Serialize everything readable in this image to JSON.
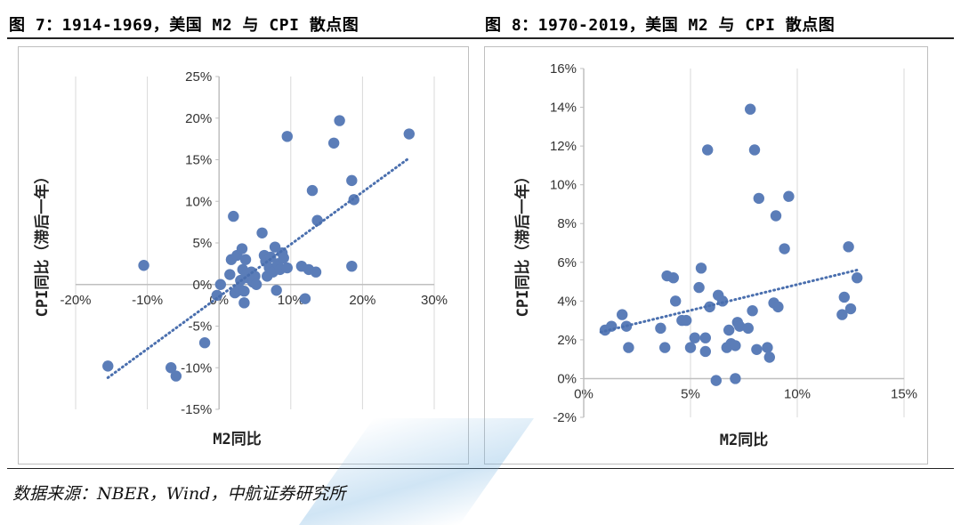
{
  "titles": {
    "left": "图 7：1914-1969，美国 M2 与 CPI 散点图",
    "right": "图 8：1970-2019，美国 M2 与 CPI 散点图"
  },
  "source": "数据来源：NBER，Wind，中航证券研究所",
  "colors": {
    "point": "#5b7db8",
    "trend": "#4a6fae",
    "grid": "#d9d9d9",
    "axis": "#bfbfbf"
  },
  "chart_data": [
    {
      "type": "scatter",
      "title": "",
      "xlabel": "M2同比",
      "ylabel": "CPI同比（滞后一年）",
      "xlim": [
        -0.2,
        0.3
      ],
      "ylim": [
        -0.15,
        0.25
      ],
      "x_ticks": [
        -0.2,
        -0.1,
        0,
        0.1,
        0.2,
        0.3
      ],
      "x_tick_labels": [
        "-20%",
        "-10%",
        "0%",
        "10%",
        "20%",
        "30%"
      ],
      "y_ticks": [
        -0.15,
        -0.1,
        -0.05,
        0,
        0.05,
        0.1,
        0.15,
        0.2,
        0.25
      ],
      "y_tick_labels": [
        "-15%",
        "-10%",
        "-5%",
        "0%",
        "5%",
        "10%",
        "15%",
        "20%",
        "25%"
      ],
      "grid": "vertical-only",
      "trendline": {
        "style": "dotted",
        "x": [
          -0.155,
          0.265
        ],
        "y": [
          -0.112,
          0.152
        ]
      },
      "points": [
        [
          -0.155,
          -0.098
        ],
        [
          -0.105,
          0.023
        ],
        [
          -0.067,
          -0.1
        ],
        [
          -0.06,
          -0.11
        ],
        [
          -0.02,
          -0.07
        ],
        [
          -0.003,
          -0.013
        ],
        [
          0.002,
          0.0
        ],
        [
          0.015,
          0.012
        ],
        [
          0.017,
          0.03
        ],
        [
          0.02,
          0.082
        ],
        [
          0.022,
          -0.01
        ],
        [
          0.025,
          0.035
        ],
        [
          0.025,
          -0.008
        ],
        [
          0.028,
          -0.005
        ],
        [
          0.03,
          0.005
        ],
        [
          0.032,
          0.043
        ],
        [
          0.033,
          0.018
        ],
        [
          0.035,
          -0.022
        ],
        [
          0.035,
          -0.008
        ],
        [
          0.037,
          0.03
        ],
        [
          0.038,
          0.012
        ],
        [
          0.04,
          0.008
        ],
        [
          0.045,
          0.015
        ],
        [
          0.047,
          0.003
        ],
        [
          0.05,
          0.01
        ],
        [
          0.052,
          0.0
        ],
        [
          0.06,
          0.062
        ],
        [
          0.063,
          0.035
        ],
        [
          0.065,
          0.028
        ],
        [
          0.067,
          0.01
        ],
        [
          0.07,
          0.02
        ],
        [
          0.072,
          0.033
        ],
        [
          0.075,
          0.015
        ],
        [
          0.078,
          0.045
        ],
        [
          0.08,
          -0.007
        ],
        [
          0.082,
          0.025
        ],
        [
          0.085,
          0.018
        ],
        [
          0.088,
          0.038
        ],
        [
          0.09,
          0.032
        ],
        [
          0.095,
          0.178
        ],
        [
          0.095,
          0.02
        ],
        [
          0.115,
          0.022
        ],
        [
          0.12,
          -0.017
        ],
        [
          0.125,
          0.018
        ],
        [
          0.13,
          0.113
        ],
        [
          0.135,
          0.015
        ],
        [
          0.137,
          0.077
        ],
        [
          0.16,
          0.17
        ],
        [
          0.168,
          0.197
        ],
        [
          0.185,
          0.125
        ],
        [
          0.185,
          0.022
        ],
        [
          0.188,
          0.102
        ],
        [
          0.265,
          0.181
        ]
      ]
    },
    {
      "type": "scatter",
      "title": "",
      "xlabel": "M2同比",
      "ylabel": "CPI同比（滞后一年）",
      "xlim": [
        0,
        0.15
      ],
      "ylim": [
        -0.02,
        0.16
      ],
      "x_ticks": [
        0,
        0.05,
        0.1,
        0.15
      ],
      "x_tick_labels": [
        "0%",
        "5%",
        "10%",
        "15%"
      ],
      "y_ticks": [
        -0.02,
        0,
        0.02,
        0.04,
        0.06,
        0.08,
        0.1,
        0.12,
        0.14,
        0.16
      ],
      "y_tick_labels": [
        "-2%",
        "0%",
        "2%",
        "4%",
        "6%",
        "8%",
        "10%",
        "12%",
        "14%",
        "16%"
      ],
      "grid": "vertical-only",
      "trendline": {
        "style": "dotted",
        "x": [
          0.008,
          0.128
        ],
        "y": [
          0.024,
          0.056
        ]
      },
      "points": [
        [
          0.01,
          0.025
        ],
        [
          0.013,
          0.027
        ],
        [
          0.018,
          0.033
        ],
        [
          0.02,
          0.027
        ],
        [
          0.021,
          0.016
        ],
        [
          0.036,
          0.026
        ],
        [
          0.038,
          0.016
        ],
        [
          0.039,
          0.053
        ],
        [
          0.042,
          0.052
        ],
        [
          0.043,
          0.04
        ],
        [
          0.046,
          0.03
        ],
        [
          0.048,
          0.03
        ],
        [
          0.05,
          0.016
        ],
        [
          0.052,
          0.021
        ],
        [
          0.054,
          0.047
        ],
        [
          0.055,
          0.057
        ],
        [
          0.057,
          0.021
        ],
        [
          0.057,
          0.014
        ],
        [
          0.058,
          0.118
        ],
        [
          0.059,
          0.037
        ],
        [
          0.062,
          -0.001
        ],
        [
          0.063,
          0.043
        ],
        [
          0.065,
          0.04
        ],
        [
          0.067,
          0.016
        ],
        [
          0.068,
          0.025
        ],
        [
          0.069,
          0.018
        ],
        [
          0.071,
          0.0
        ],
        [
          0.071,
          0.017
        ],
        [
          0.072,
          0.029
        ],
        [
          0.073,
          0.027
        ],
        [
          0.077,
          0.026
        ],
        [
          0.078,
          0.139
        ],
        [
          0.079,
          0.035
        ],
        [
          0.08,
          0.118
        ],
        [
          0.081,
          0.015
        ],
        [
          0.082,
          0.093
        ],
        [
          0.086,
          0.016
        ],
        [
          0.087,
          0.011
        ],
        [
          0.089,
          0.039
        ],
        [
          0.09,
          0.084
        ],
        [
          0.091,
          0.037
        ],
        [
          0.094,
          0.067
        ],
        [
          0.096,
          0.094
        ],
        [
          0.121,
          0.033
        ],
        [
          0.122,
          0.042
        ],
        [
          0.124,
          0.068
        ],
        [
          0.125,
          0.036
        ],
        [
          0.128,
          0.052
        ]
      ]
    }
  ]
}
